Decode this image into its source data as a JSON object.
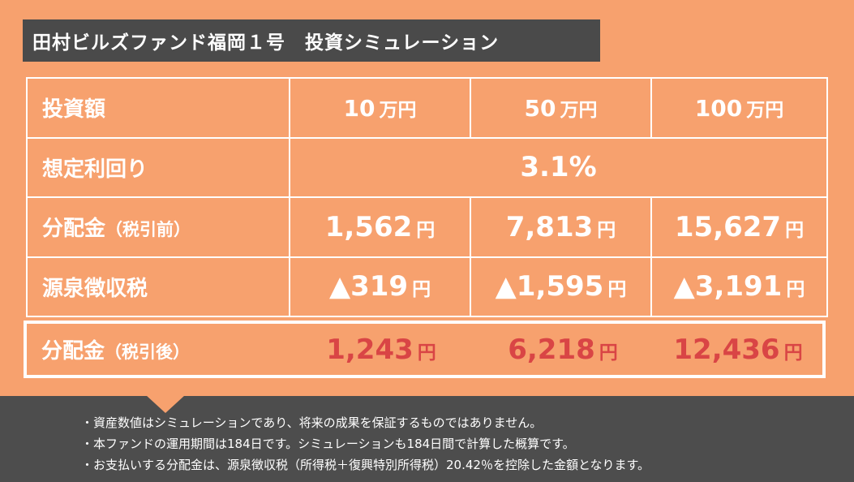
{
  "title": "田村ビルズファンド福岡１号　投資シミュレーション",
  "rows": {
    "amount": {
      "label": "投資額",
      "values": [
        "10",
        "50",
        "100"
      ],
      "unit": "万円"
    },
    "rate": {
      "label": "想定利回り",
      "value": "3.1%"
    },
    "before_tax": {
      "label": "分配金",
      "label_paren": "（税引前）",
      "values": [
        "1,562",
        "7,813",
        "15,627"
      ],
      "unit": "円"
    },
    "withholding": {
      "label": "源泉徴収税",
      "values": [
        "▲319",
        "▲1,595",
        "▲3,191"
      ],
      "unit": "円"
    },
    "after_tax": {
      "label": "分配金",
      "label_paren": "（税引後）",
      "values": [
        "1,243",
        "6,218",
        "12,436"
      ],
      "unit": "円"
    }
  },
  "notes": [
    "・資産数値はシミュレーションであり、将来の成果を保証するものではありません。",
    "・本ファンドの運用期間は184日です。シミュレーションも184日間で計算した概算です。",
    "・お支払いする分配金は、源泉徴収税（所得税＋復興特別所得税）20.42％を控除した金額となります。"
  ],
  "colors": {
    "background": "#f7a16e",
    "dark": "#4a4a4a",
    "highlight": "#d94545"
  }
}
